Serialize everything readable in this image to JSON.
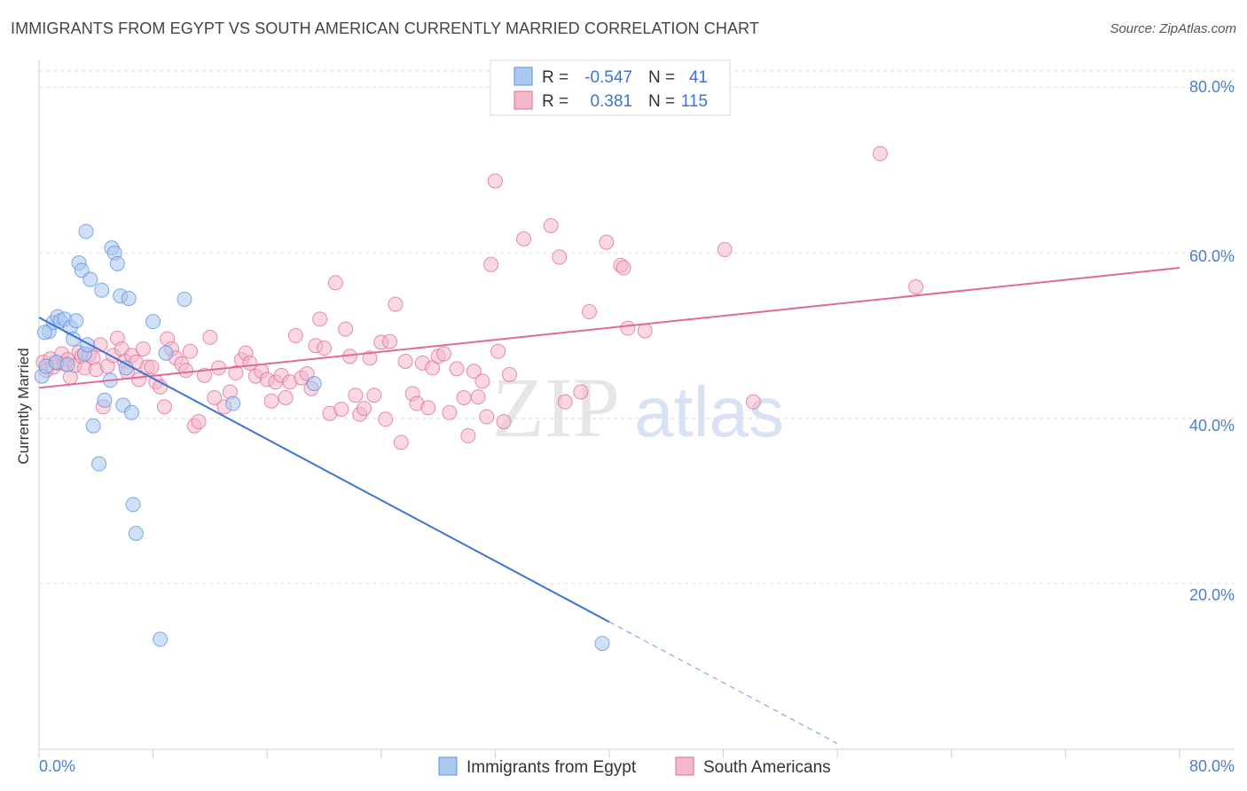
{
  "title": "IMMIGRANTS FROM EGYPT VS SOUTH AMERICAN CURRENTLY MARRIED CORRELATION CHART",
  "source": "Source: ZipAtlas.com",
  "watermark": {
    "zip": "ZIP",
    "atlas": "atlas"
  },
  "colors": {
    "blue": "#5b8fe0",
    "blue_fill": "#aac8f0",
    "pink": "#e06a96",
    "pink_fill": "#f4b8cb",
    "tick": "#4a7fd1"
  },
  "legend": {
    "row1": {
      "r_label": "R =",
      "r_value": "-0.547",
      "n_label": "N =",
      "n_value": "41"
    },
    "row2": {
      "r_label": "R =",
      "r_value": "0.381",
      "n_label": "N =",
      "n_value": "115"
    }
  },
  "chart_data": {
    "type": "scatter",
    "title": "IMMIGRANTS FROM EGYPT VS SOUTH AMERICAN CURRENTLY MARRIED CORRELATION CHART",
    "xlabel": "",
    "ylabel": "Currently Married",
    "xlim": [
      0,
      80
    ],
    "ylim": [
      0,
      82
    ],
    "x_tick_labels": [
      "0.0%",
      "80.0%"
    ],
    "y_ticks": [
      20,
      40,
      60,
      80
    ],
    "y_tick_labels": [
      "20.0%",
      "40.0%",
      "60.0%",
      "80.0%"
    ],
    "legend_bottom": [
      "Immigrants from Egypt",
      "South Americans"
    ],
    "series": [
      {
        "name": "Immigrants from Egypt",
        "color": "#5b8fe0",
        "r": -0.547,
        "n": 41,
        "trend": {
          "x0": 0,
          "y0": 52.2,
          "x1": 40,
          "y1": 15.4,
          "dash_to_x": 56,
          "dash_to_y": 0.7
        },
        "points": [
          [
            0.2,
            45.1
          ],
          [
            0.5,
            46.3
          ],
          [
            0.7,
            50.5
          ],
          [
            1,
            51.6
          ],
          [
            1.2,
            46.8
          ],
          [
            1.3,
            52.3
          ],
          [
            1.5,
            51.8
          ],
          [
            1.8,
            52
          ],
          [
            2,
            46.5
          ],
          [
            2.2,
            51
          ],
          [
            2.4,
            49.6
          ],
          [
            2.6,
            51.8
          ],
          [
            2.8,
            58.8
          ],
          [
            3,
            57.9
          ],
          [
            3.2,
            47.8
          ],
          [
            3.3,
            62.6
          ],
          [
            3.4,
            48.9
          ],
          [
            3.6,
            56.8
          ],
          [
            3.8,
            39.1
          ],
          [
            4.2,
            34.5
          ],
          [
            4.4,
            55.5
          ],
          [
            4.6,
            42.2
          ],
          [
            5,
            44.6
          ],
          [
            5.1,
            60.6
          ],
          [
            5.3,
            60
          ],
          [
            5.5,
            58.7
          ],
          [
            5.7,
            54.8
          ],
          [
            5.9,
            41.6
          ],
          [
            6.1,
            46.1
          ],
          [
            6.3,
            54.5
          ],
          [
            6.5,
            40.7
          ],
          [
            6.6,
            29.6
          ],
          [
            6.8,
            26.1
          ],
          [
            8,
            51.7
          ],
          [
            8.5,
            13.3
          ],
          [
            8.9,
            47.9
          ],
          [
            10.2,
            54.4
          ],
          [
            13.6,
            41.8
          ],
          [
            19.3,
            44.2
          ],
          [
            39.5,
            12.8
          ],
          [
            0.4,
            50.4
          ]
        ]
      },
      {
        "name": "South Americans",
        "color": "#e06a96",
        "r": 0.381,
        "n": 115,
        "trend": {
          "x0": 0,
          "y0": 43.7,
          "x1": 80,
          "y1": 58.2
        },
        "points": [
          [
            0.3,
            46.8
          ],
          [
            0.5,
            45.8
          ],
          [
            0.8,
            47.2
          ],
          [
            1,
            46.2
          ],
          [
            1.3,
            46.7
          ],
          [
            1.6,
            47.8
          ],
          [
            1.8,
            46.6
          ],
          [
            2,
            47.1
          ],
          [
            2.2,
            45
          ],
          [
            2.5,
            46.4
          ],
          [
            2.8,
            48
          ],
          [
            3,
            47.5
          ],
          [
            3.2,
            46.1
          ],
          [
            3.5,
            47.7
          ],
          [
            3.8,
            47.3
          ],
          [
            4,
            45.9
          ],
          [
            4.3,
            48.9
          ],
          [
            4.5,
            41.4
          ],
          [
            4.8,
            46.3
          ],
          [
            5.2,
            47.6
          ],
          [
            5.5,
            49.7
          ],
          [
            5.8,
            48.4
          ],
          [
            6,
            46.9
          ],
          [
            6.2,
            45.6
          ],
          [
            6.5,
            47.6
          ],
          [
            6.8,
            46.8
          ],
          [
            7,
            44.7
          ],
          [
            7.3,
            48.4
          ],
          [
            7.6,
            46.2
          ],
          [
            7.9,
            46.2
          ],
          [
            8.2,
            44.4
          ],
          [
            8.5,
            43.8
          ],
          [
            8.8,
            41.4
          ],
          [
            9,
            49.6
          ],
          [
            9.3,
            48.4
          ],
          [
            9.6,
            47.3
          ],
          [
            10,
            46.6
          ],
          [
            10.3,
            45.8
          ],
          [
            10.6,
            48.1
          ],
          [
            10.9,
            39.1
          ],
          [
            11.2,
            39.6
          ],
          [
            11.6,
            45.2
          ],
          [
            12,
            49.8
          ],
          [
            12.3,
            42.5
          ],
          [
            12.6,
            46.1
          ],
          [
            13,
            41.4
          ],
          [
            13.4,
            43.2
          ],
          [
            13.8,
            45.5
          ],
          [
            14.2,
            47.1
          ],
          [
            14.5,
            47.9
          ],
          [
            14.8,
            46.7
          ],
          [
            15.2,
            45.1
          ],
          [
            15.6,
            45.7
          ],
          [
            16,
            44.7
          ],
          [
            16.3,
            42.1
          ],
          [
            16.6,
            44.4
          ],
          [
            17,
            45.2
          ],
          [
            17.3,
            42.5
          ],
          [
            17.6,
            44.4
          ],
          [
            18,
            50
          ],
          [
            18.4,
            44.9
          ],
          [
            18.8,
            45.4
          ],
          [
            19.1,
            43.6
          ],
          [
            19.4,
            48.8
          ],
          [
            19.7,
            52
          ],
          [
            20,
            48.5
          ],
          [
            20.4,
            40.6
          ],
          [
            20.8,
            56.4
          ],
          [
            21.2,
            41.1
          ],
          [
            21.5,
            50.8
          ],
          [
            21.8,
            47.5
          ],
          [
            22.2,
            42.8
          ],
          [
            22.5,
            40.5
          ],
          [
            22.8,
            41.2
          ],
          [
            23.2,
            47.3
          ],
          [
            23.5,
            42.8
          ],
          [
            24,
            49.2
          ],
          [
            24.3,
            39.9
          ],
          [
            24.6,
            49.3
          ],
          [
            25,
            53.8
          ],
          [
            25.4,
            37.1
          ],
          [
            25.7,
            46.9
          ],
          [
            26.2,
            43
          ],
          [
            26.5,
            41.8
          ],
          [
            26.9,
            46.7
          ],
          [
            27.3,
            41.3
          ],
          [
            27.6,
            46.1
          ],
          [
            28,
            47.5
          ],
          [
            28.4,
            47.8
          ],
          [
            28.8,
            40.7
          ],
          [
            29.3,
            46
          ],
          [
            29.8,
            42.5
          ],
          [
            30.1,
            37.9
          ],
          [
            30.5,
            45.7
          ],
          [
            30.8,
            42.6
          ],
          [
            31.1,
            44.5
          ],
          [
            31.4,
            40.2
          ],
          [
            32,
            68.7
          ],
          [
            32.6,
            39.6
          ],
          [
            33,
            45.3
          ],
          [
            32.2,
            48.1
          ],
          [
            34,
            61.7
          ],
          [
            35.9,
            63.3
          ],
          [
            36.5,
            59.5
          ],
          [
            36.9,
            42
          ],
          [
            38,
            43.2
          ],
          [
            38.6,
            52.9
          ],
          [
            39.8,
            61.3
          ],
          [
            40.8,
            58.5
          ],
          [
            41,
            58.2
          ],
          [
            41.3,
            50.9
          ],
          [
            42.5,
            50.6
          ],
          [
            48.1,
            60.4
          ],
          [
            50.1,
            42
          ],
          [
            59,
            72
          ],
          [
            61.5,
            55.9
          ],
          [
            31.7,
            58.6
          ]
        ]
      }
    ]
  }
}
